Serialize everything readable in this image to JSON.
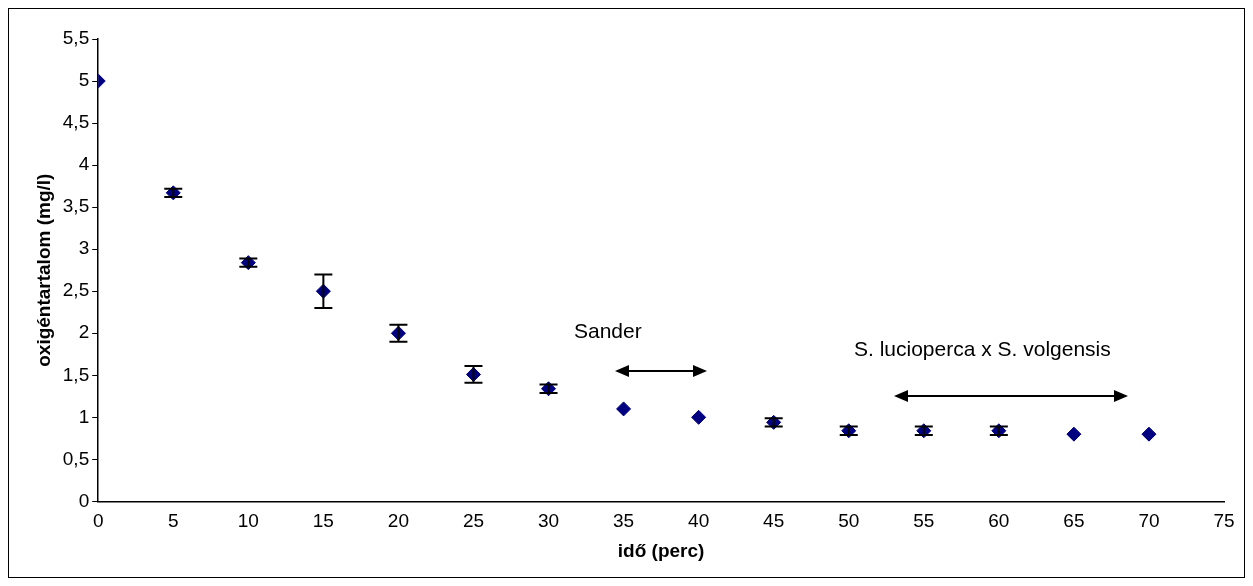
{
  "chart_data": {
    "type": "scatter",
    "xlabel": "idő (perc)",
    "ylabel": "oxigéntartalom (mg/l)",
    "x": [
      0,
      5,
      10,
      15,
      20,
      25,
      30,
      35,
      40,
      45,
      50,
      55,
      60,
      65,
      70
    ],
    "series": [
      {
        "color": "#000080",
        "values": [
          5,
          3.67,
          2.84,
          2.5,
          2.0,
          1.51,
          1.34,
          1.1,
          1.0,
          0.94,
          0.84,
          0.84,
          0.84,
          0.8,
          0.8
        ],
        "errors": [
          null,
          0.05,
          0.05,
          0.2,
          0.1,
          0.1,
          0.05,
          null,
          null,
          0.05,
          0.05,
          0.05,
          0.05,
          null,
          null
        ]
      }
    ],
    "xlim": [
      0,
      75
    ],
    "xticks": [
      0,
      5,
      10,
      15,
      20,
      25,
      30,
      35,
      40,
      45,
      50,
      55,
      60,
      65,
      70,
      75
    ],
    "ylim": [
      0,
      5.5
    ],
    "yticks": [
      {
        "value": 0,
        "label": "0"
      },
      {
        "value": 0.5,
        "label": "0,5"
      },
      {
        "value": 1,
        "label": "1"
      },
      {
        "value": 1.5,
        "label": "1,5"
      },
      {
        "value": 2,
        "label": "2"
      },
      {
        "value": 2.5,
        "label": "2,5"
      },
      {
        "value": 3,
        "label": "3"
      },
      {
        "value": 3.5,
        "label": "3,5"
      },
      {
        "value": 4,
        "label": "4"
      },
      {
        "value": 4.5,
        "label": "4,5"
      },
      {
        "value": 5,
        "label": "5"
      },
      {
        "value": 5.5,
        "label": "5,5"
      }
    ],
    "marker": "diamond",
    "grid": false,
    "legend": false,
    "annotations": [
      "Sander",
      "S. lucioperca x S. volgensis"
    ]
  }
}
